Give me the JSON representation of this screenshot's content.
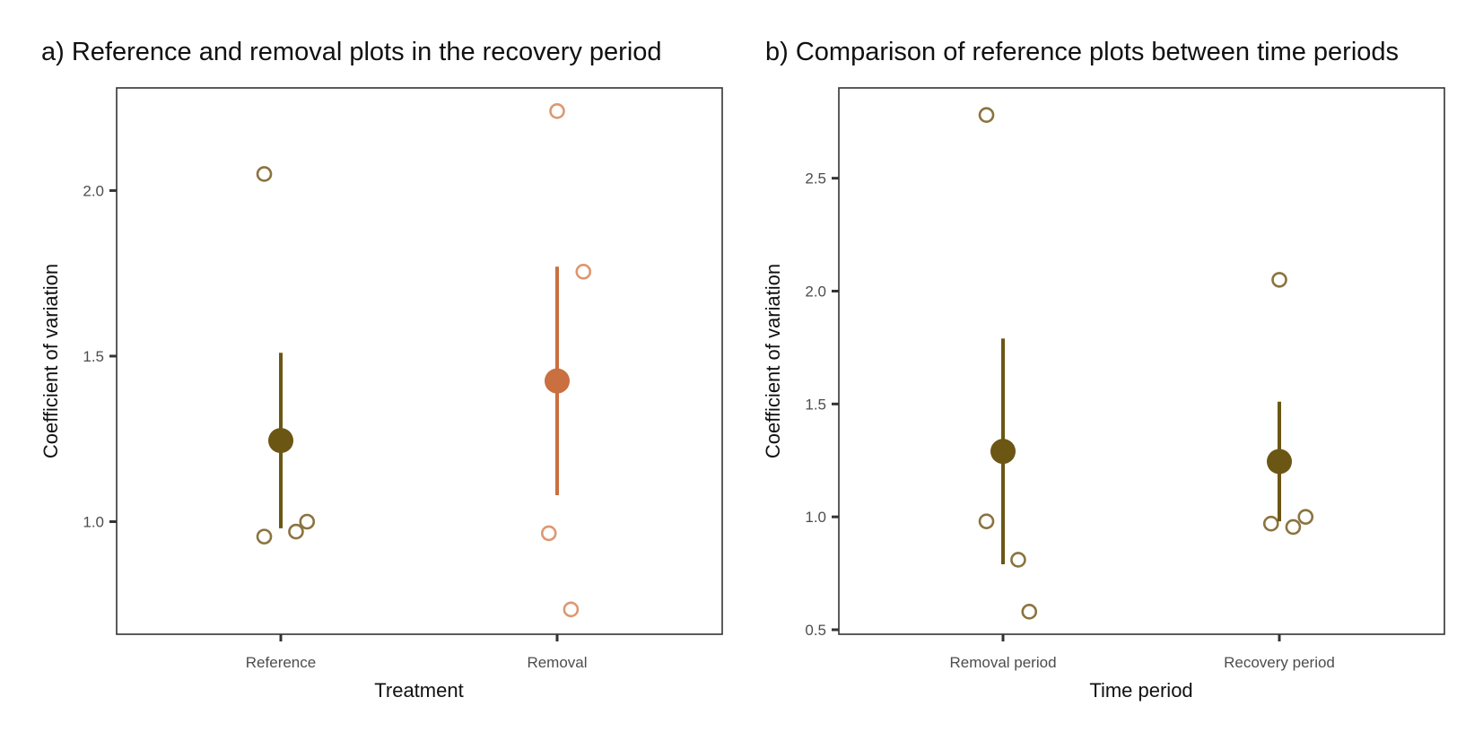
{
  "chart_data": [
    {
      "type": "scatter",
      "title": "a) Reference and removal plots in the recovery period",
      "xlabel": "Treatment",
      "ylabel": "Coefficient of variation",
      "categories": [
        "Reference",
        "Removal"
      ],
      "ylim": [
        0.66,
        2.31
      ],
      "yticks": [
        "1.0",
        "1.5",
        "2.0"
      ],
      "grid": false,
      "legend": "none",
      "groups": [
        {
          "category": "Reference",
          "color": "#6b5614",
          "point_color": "#8a733e",
          "mean": 1.245,
          "ci": [
            0.98,
            1.51
          ],
          "points": [
            {
              "offset": -0.06,
              "y": 2.05
            },
            {
              "offset": -0.06,
              "y": 0.955
            },
            {
              "offset": 0.055,
              "y": 0.97
            },
            {
              "offset": 0.095,
              "y": 1.0
            }
          ]
        },
        {
          "category": "Removal",
          "color": "#c96f40",
          "point_color": "#dc9870",
          "mean": 1.425,
          "ci": [
            1.08,
            1.77
          ],
          "points": [
            {
              "offset": 0.0,
              "y": 2.24
            },
            {
              "offset": 0.095,
              "y": 1.755
            },
            {
              "offset": -0.03,
              "y": 0.965
            },
            {
              "offset": 0.05,
              "y": 0.735
            }
          ]
        }
      ]
    },
    {
      "type": "scatter",
      "title": "b) Comparison of reference plots between time periods",
      "xlabel": "Time period",
      "ylabel": "Coefficient of variation",
      "categories": [
        "Removal period",
        "Recovery period"
      ],
      "ylim": [
        0.48,
        2.9
      ],
      "yticks": [
        "0.5",
        "1.0",
        "1.5",
        "2.0",
        "2.5"
      ],
      "grid": false,
      "legend": "none",
      "groups": [
        {
          "category": "Removal period",
          "color": "#6b5614",
          "point_color": "#8a733e",
          "mean": 1.29,
          "ci": [
            0.79,
            1.79
          ],
          "points": [
            {
              "offset": -0.06,
              "y": 2.78
            },
            {
              "offset": -0.06,
              "y": 0.98
            },
            {
              "offset": 0.055,
              "y": 0.81
            },
            {
              "offset": 0.095,
              "y": 0.58
            }
          ]
        },
        {
          "category": "Recovery period",
          "color": "#6b5614",
          "point_color": "#8a733e",
          "mean": 1.245,
          "ci": [
            0.98,
            1.51
          ],
          "points": [
            {
              "offset": 0.0,
              "y": 2.05
            },
            {
              "offset": -0.03,
              "y": 0.97
            },
            {
              "offset": 0.05,
              "y": 0.955
            },
            {
              "offset": 0.095,
              "y": 1.0
            }
          ]
        }
      ]
    }
  ]
}
